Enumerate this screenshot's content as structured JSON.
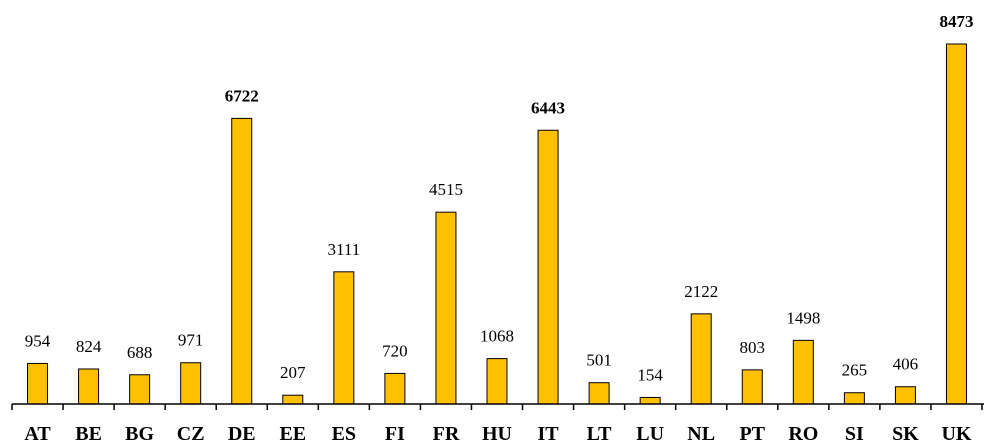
{
  "chart_data": {
    "type": "bar",
    "categories": [
      "AT",
      "BE",
      "BG",
      "CZ",
      "DE",
      "EE",
      "ES",
      "FI",
      "FR",
      "HU",
      "IT",
      "LT",
      "LU",
      "NL",
      "PT",
      "RO",
      "SI",
      "SK",
      "UK"
    ],
    "values": [
      954,
      824,
      688,
      971,
      6722,
      207,
      3111,
      720,
      4515,
      1068,
      6443,
      501,
      154,
      2122,
      803,
      1498,
      265,
      406,
      8473
    ],
    "bold_labels": [
      "DE",
      "IT",
      "UK"
    ],
    "ylim": [
      0,
      9000
    ],
    "grid": false,
    "legend": "none",
    "bar_color": "#FFC000",
    "bar_edge_color": "#000000"
  }
}
